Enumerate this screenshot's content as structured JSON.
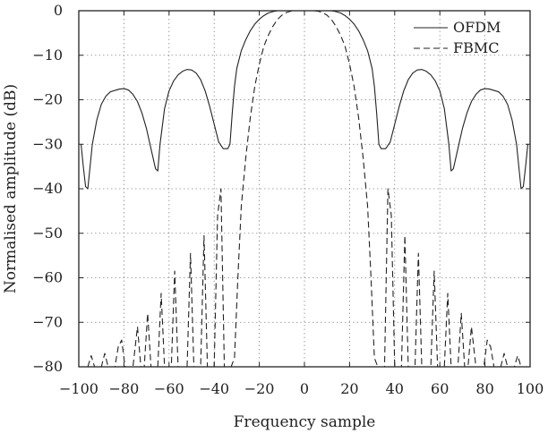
{
  "chart_data": {
    "type": "line",
    "title": "",
    "xlabel": "Frequency sample",
    "ylabel": "Normalised amplitude (dB)",
    "xlim": [
      -100,
      100
    ],
    "ylim": [
      -80,
      0
    ],
    "xticks": [
      -100,
      -80,
      -60,
      -40,
      -20,
      0,
      20,
      40,
      60,
      80,
      100
    ],
    "yticks": [
      0,
      -10,
      -20,
      -30,
      -40,
      -50,
      -60,
      -70,
      -80
    ],
    "grid": true,
    "legend_position": "top-right",
    "series": [
      {
        "name": "OFDM",
        "line_style": "solid",
        "color": "#222222",
        "x": [
          -99,
          -98,
          -97,
          -96,
          -94,
          -92,
          -90,
          -88,
          -86,
          -84,
          -82,
          -80,
          -78,
          -76,
          -74,
          -72,
          -70,
          -68,
          -66,
          -65,
          -64,
          -62,
          -60,
          -58,
          -56,
          -54,
          -52,
          -50,
          -48,
          -46,
          -44,
          -42,
          -40,
          -38,
          -36,
          -34,
          -33,
          -32,
          -31,
          -30,
          -28,
          -26,
          -24,
          -22,
          -20,
          -18,
          -16,
          -14,
          -12,
          -10,
          -8,
          -6,
          -4,
          -2,
          0,
          2,
          4,
          6,
          8,
          10,
          12,
          14,
          16,
          18,
          20,
          22,
          24,
          26,
          28,
          30,
          31,
          32,
          33,
          34,
          36,
          38,
          40,
          42,
          44,
          46,
          48,
          50,
          52,
          54,
          56,
          58,
          60,
          62,
          64,
          65,
          66,
          68,
          70,
          72,
          74,
          76,
          78,
          80,
          82,
          84,
          86,
          88,
          90,
          92,
          94,
          96,
          97,
          98,
          99
        ],
        "y": [
          -30,
          -35,
          -39.5,
          -40,
          -30,
          -24.5,
          -21,
          -19.2,
          -18.2,
          -17.9,
          -17.6,
          -17.5,
          -17.8,
          -18.8,
          -20.4,
          -23,
          -26.5,
          -31,
          -35.5,
          -36,
          -30,
          -22,
          -18,
          -15.8,
          -14.4,
          -13.6,
          -13.2,
          -13.3,
          -14,
          -15.5,
          -18,
          -21.5,
          -25.5,
          -29.5,
          -31,
          -31,
          -30,
          -23,
          -17,
          -13,
          -9,
          -6.5,
          -4.5,
          -3,
          -1.9,
          -1.1,
          -0.5,
          -0.2,
          0,
          0,
          0,
          0,
          0,
          0,
          0,
          0,
          0,
          0,
          0,
          0,
          0,
          -0.2,
          -0.5,
          -1.1,
          -1.9,
          -3,
          -4.5,
          -6.5,
          -9,
          -13,
          -17,
          -23,
          -30,
          -31,
          -31,
          -29.5,
          -25.5,
          -21.5,
          -18,
          -15.5,
          -14,
          -13.3,
          -13.2,
          -13.6,
          -14.4,
          -15.8,
          -18,
          -22,
          -30,
          -36,
          -35.5,
          -31,
          -26.5,
          -23,
          -20.4,
          -18.8,
          -17.8,
          -17.5,
          -17.6,
          -17.9,
          -18.2,
          -19.2,
          -21,
          -24.5,
          -30,
          -40,
          -39.5,
          -35,
          -30
        ]
      },
      {
        "name": "FBMC",
        "line_style": "dashed",
        "color": "#222222",
        "x": [
          -96,
          -94.5,
          -93,
          -91.5,
          -90,
          -88.5,
          -87,
          -85.5,
          -84,
          -82.5,
          -81,
          -79.5,
          -78,
          -76,
          -74,
          -72.5,
          -71,
          -69.5,
          -68,
          -66.5,
          -65,
          -63.5,
          -62,
          -60.5,
          -59,
          -57.5,
          -56,
          -54,
          -52,
          -50.5,
          -49,
          -47.5,
          -46,
          -44.5,
          -43,
          -41.5,
          -40,
          -38.5,
          -37,
          -35.5,
          -34,
          -32.5,
          -31,
          -29.5,
          -28,
          -26,
          -24,
          -22,
          -20,
          -18,
          -16,
          -14,
          -12,
          -10,
          -8,
          -6,
          -4,
          -2,
          0,
          2,
          4,
          6,
          8,
          10,
          12,
          14,
          16,
          18,
          20,
          22,
          24,
          26,
          28,
          29.5,
          31,
          32.5,
          34,
          35.5,
          37,
          38.5,
          40,
          41.5,
          43,
          44.5,
          46,
          47.5,
          49,
          50.5,
          52,
          54,
          56,
          57.5,
          59,
          60.5,
          62,
          63.5,
          65,
          66.5,
          68,
          69.5,
          71,
          72.5,
          74,
          76,
          78,
          79.5,
          81,
          82.5,
          84,
          85.5,
          87,
          88.5,
          90,
          91.5,
          93,
          94.5,
          96
        ],
        "y": [
          -80,
          -77.5,
          -80,
          -80,
          -80,
          -77,
          -80,
          -80,
          -80,
          -75.5,
          -74,
          -80,
          -80,
          -80,
          -71,
          -80,
          -80,
          -68,
          -80,
          -80,
          -80,
          -63.5,
          -80,
          -80,
          -80,
          -58.5,
          -80,
          -80,
          -80,
          -54.5,
          -80,
          -80,
          -80,
          -50.5,
          -80,
          -80,
          -80,
          -46,
          -40,
          -80,
          -80,
          -80,
          -78,
          -60,
          -44,
          -33,
          -24,
          -17,
          -12,
          -8,
          -5.5,
          -3.5,
          -2,
          -1,
          -0.4,
          -0.1,
          0,
          0,
          0,
          0,
          0,
          -0.1,
          -0.4,
          -1,
          -2,
          -3.5,
          -5.5,
          -8,
          -12,
          -17,
          -24,
          -33,
          -44,
          -60,
          -78,
          -80,
          -80,
          -80,
          -40,
          -46,
          -80,
          -80,
          -80,
          -50.5,
          -80,
          -80,
          -80,
          -54.5,
          -80,
          -80,
          -80,
          -58.5,
          -80,
          -80,
          -80,
          -63.5,
          -80,
          -80,
          -80,
          -68,
          -80,
          -80,
          -71,
          -80,
          -80,
          -80,
          -74,
          -75.5,
          -80,
          -80,
          -80,
          -77,
          -80,
          -80,
          -80,
          -77.5,
          -80
        ]
      }
    ]
  }
}
